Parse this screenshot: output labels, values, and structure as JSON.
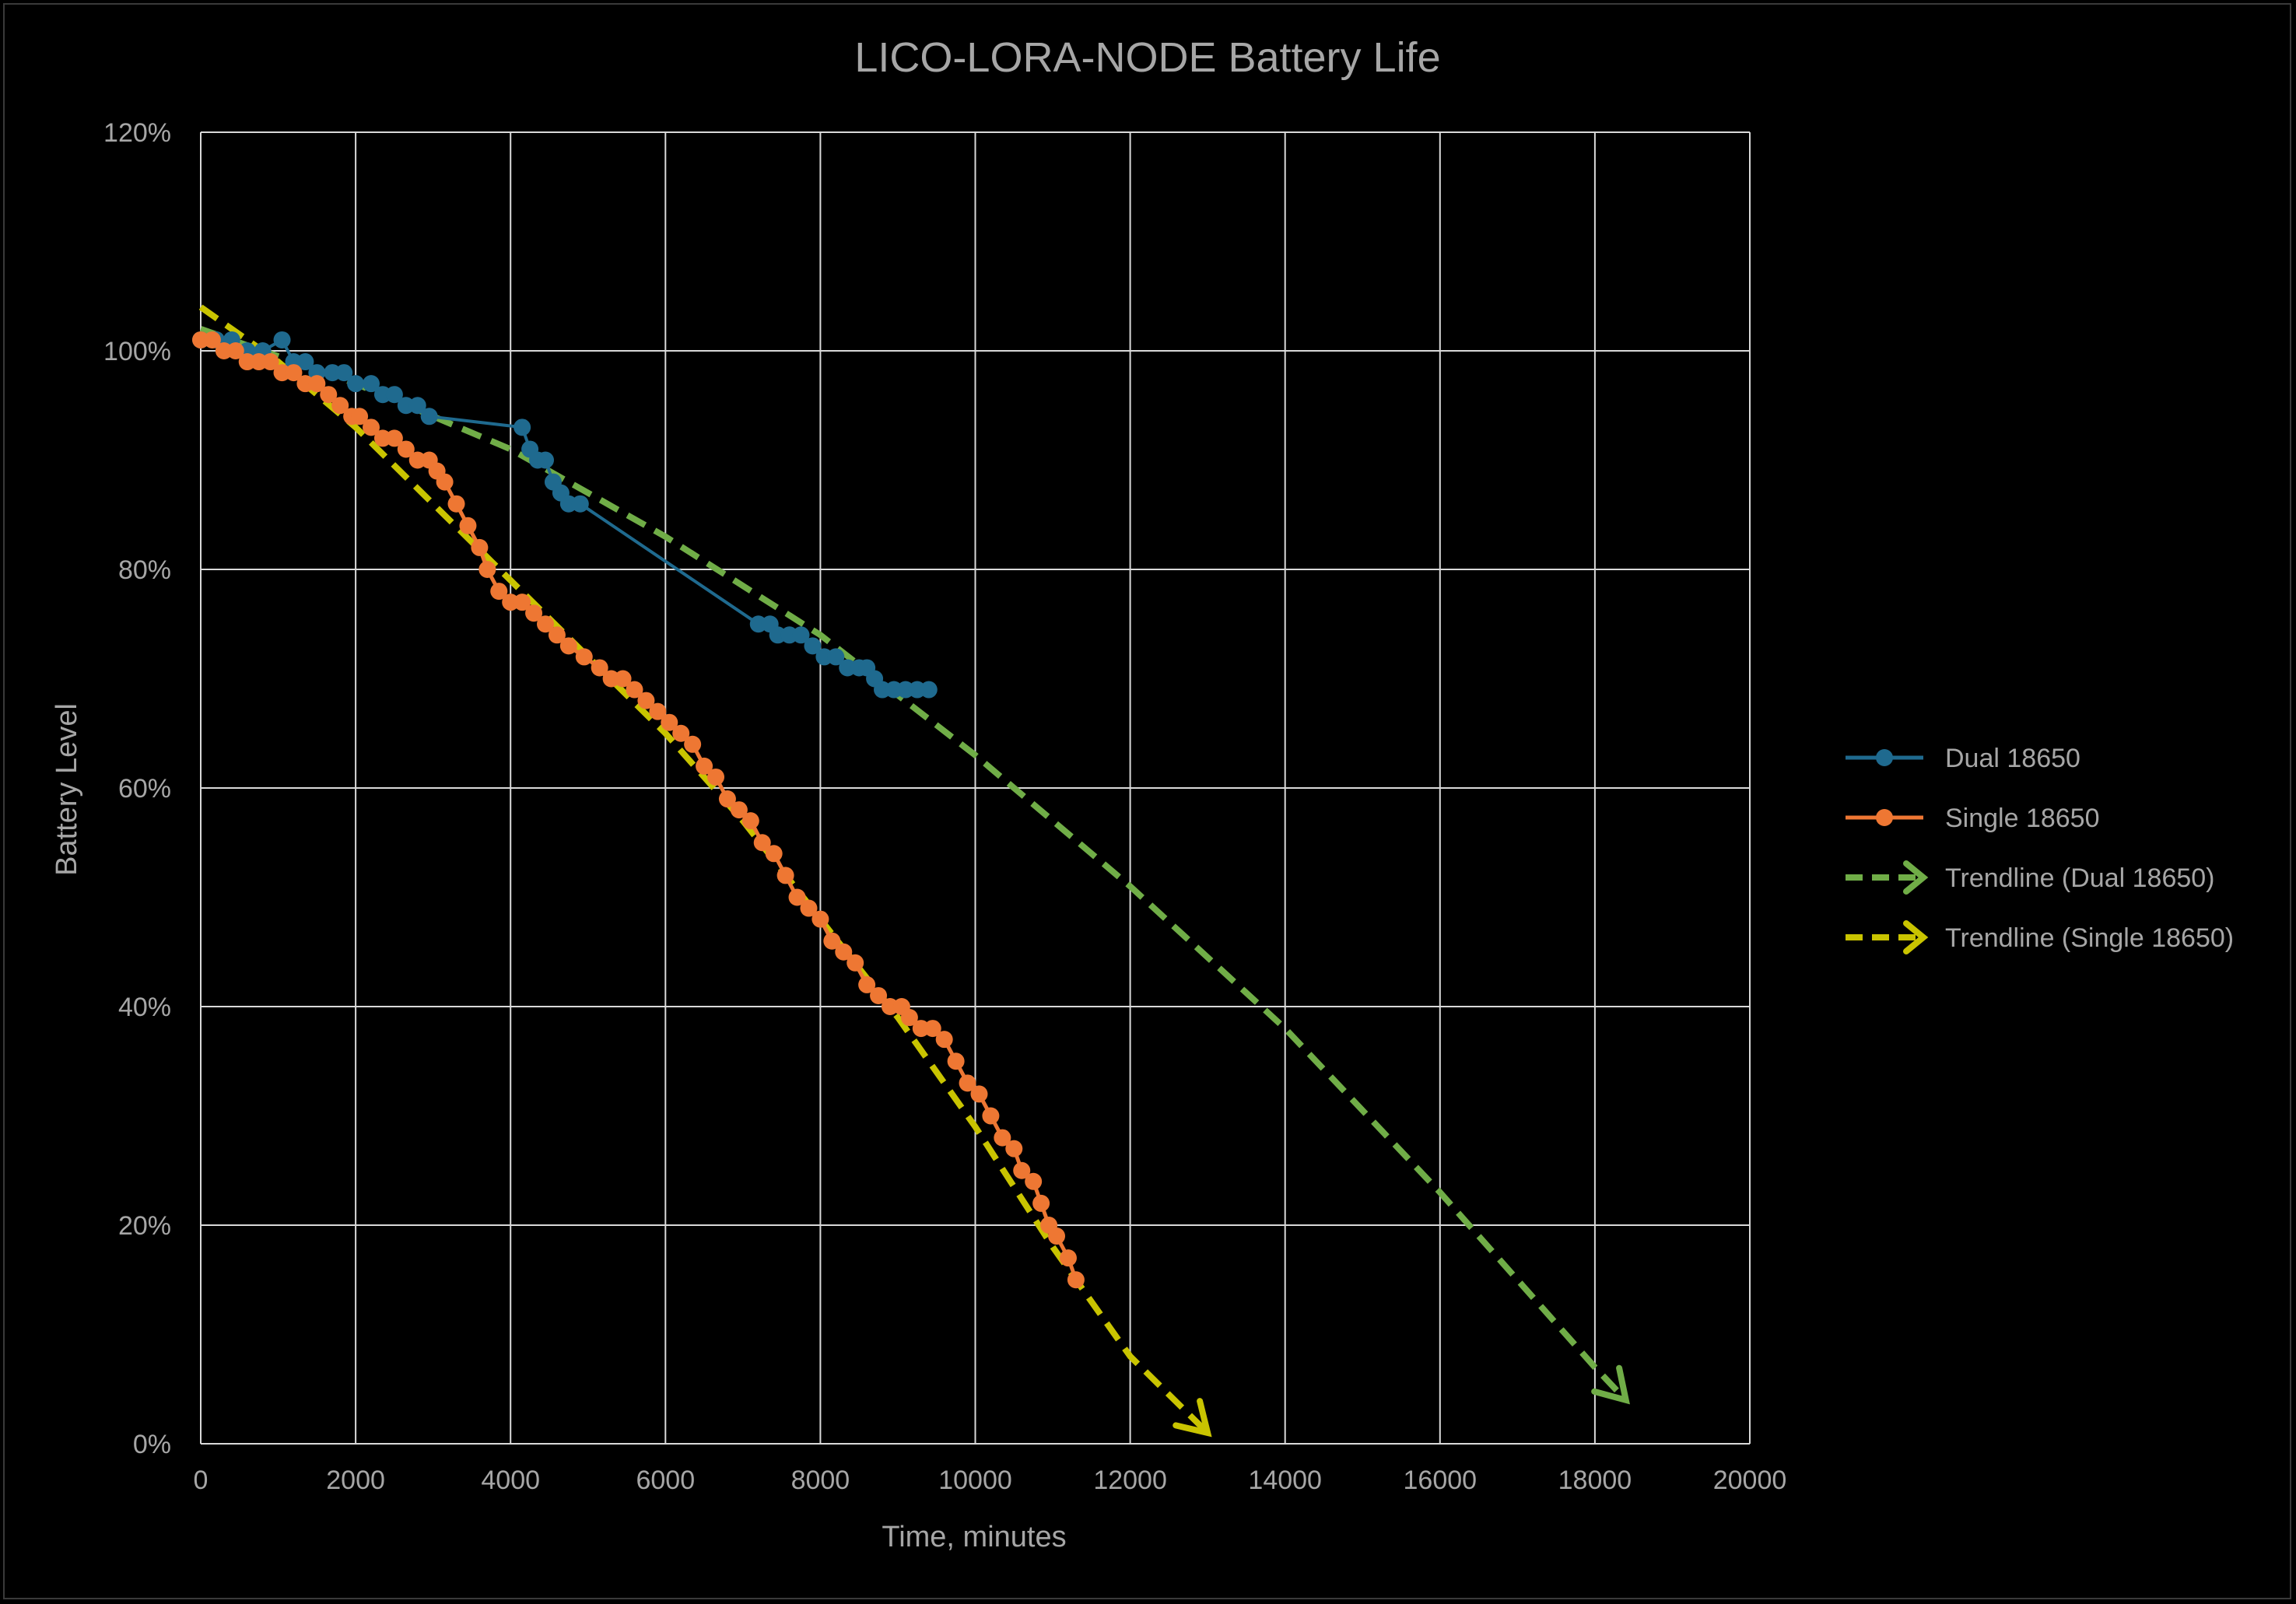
{
  "chart_data": {
    "type": "line",
    "title": "LICO-LORA-NODE  Battery Life",
    "xlabel": "Time, minutes",
    "ylabel": "Battery Level",
    "xlim": [
      0,
      20000
    ],
    "ylim": [
      0,
      1.2
    ],
    "x_ticks": [
      "0",
      "2000",
      "4000",
      "6000",
      "8000",
      "10000",
      "12000",
      "14000",
      "16000",
      "18000",
      "20000"
    ],
    "y_ticks": [
      "0%",
      "20%",
      "40%",
      "60%",
      "80%",
      "100%",
      "120%"
    ],
    "grid": true,
    "legend_position": "right",
    "series": [
      {
        "name": "Dual 18650",
        "color": "#1f6a8f",
        "style": "line-markers",
        "x": [
          0,
          200,
          400,
          600,
          800,
          1050,
          1200,
          1350,
          1500,
          1700,
          1850,
          2000,
          2200,
          2350,
          2500,
          2650,
          2800,
          2950,
          4150,
          4250,
          4350,
          4450,
          4550,
          4650,
          4750,
          4900,
          7200,
          7350,
          7450,
          7600,
          7750,
          7900,
          8050,
          8200,
          8350,
          8500,
          8600,
          8700,
          8800,
          8950,
          9100,
          9250,
          9400
        ],
        "y": [
          1.01,
          1.01,
          1.01,
          1.0,
          1.0,
          1.01,
          0.99,
          0.99,
          0.98,
          0.98,
          0.98,
          0.97,
          0.97,
          0.96,
          0.96,
          0.95,
          0.95,
          0.94,
          0.93,
          0.91,
          0.9,
          0.9,
          0.88,
          0.87,
          0.86,
          0.86,
          0.75,
          0.75,
          0.74,
          0.74,
          0.74,
          0.73,
          0.72,
          0.72,
          0.71,
          0.71,
          0.71,
          0.7,
          0.69,
          0.69,
          0.69,
          0.69,
          0.69
        ]
      },
      {
        "name": "Single 18650",
        "color": "#ee7733",
        "style": "line-markers",
        "x": [
          0,
          150,
          300,
          450,
          600,
          750,
          900,
          1050,
          1200,
          1350,
          1500,
          1650,
          1800,
          1950,
          2050,
          2200,
          2350,
          2500,
          2650,
          2800,
          2950,
          3050,
          3150,
          3300,
          3450,
          3600,
          3700,
          3850,
          4000,
          4150,
          4300,
          4450,
          4600,
          4750,
          4950,
          5150,
          5300,
          5450,
          5600,
          5750,
          5900,
          6050,
          6200,
          6350,
          6500,
          6650,
          6800,
          6950,
          7100,
          7250,
          7400,
          7550,
          7700,
          7850,
          8000,
          8150,
          8300,
          8450,
          8600,
          8750,
          8900,
          9050,
          9150,
          9300,
          9450,
          9600,
          9750,
          9900,
          10050,
          10200,
          10350,
          10500,
          10600,
          10750,
          10850,
          10950,
          11050,
          11200,
          11300
        ],
        "y": [
          1.01,
          1.01,
          1.0,
          1.0,
          0.99,
          0.99,
          0.99,
          0.98,
          0.98,
          0.97,
          0.97,
          0.96,
          0.95,
          0.94,
          0.94,
          0.93,
          0.92,
          0.92,
          0.91,
          0.9,
          0.9,
          0.89,
          0.88,
          0.86,
          0.84,
          0.82,
          0.8,
          0.78,
          0.77,
          0.77,
          0.76,
          0.75,
          0.74,
          0.73,
          0.72,
          0.71,
          0.7,
          0.7,
          0.69,
          0.68,
          0.67,
          0.66,
          0.65,
          0.64,
          0.62,
          0.61,
          0.59,
          0.58,
          0.57,
          0.55,
          0.54,
          0.52,
          0.5,
          0.49,
          0.48,
          0.46,
          0.45,
          0.44,
          0.42,
          0.41,
          0.4,
          0.4,
          0.39,
          0.38,
          0.38,
          0.37,
          0.35,
          0.33,
          0.32,
          0.3,
          0.28,
          0.27,
          0.25,
          0.24,
          0.22,
          0.2,
          0.19,
          0.17,
          0.15
        ]
      },
      {
        "name": "Trendline (Dual 18650)",
        "color": "#70ad47",
        "style": "dashed-arrow",
        "x": [
          0,
          2000,
          4000,
          6000,
          8000,
          10000,
          12000,
          14000,
          16000,
          18000,
          18400
        ],
        "y": [
          1.02,
          0.97,
          0.91,
          0.83,
          0.74,
          0.63,
          0.51,
          0.38,
          0.23,
          0.07,
          0.04
        ]
      },
      {
        "name": "Trendline (Single 18650)",
        "color": "#c9c400",
        "style": "dashed-arrow",
        "x": [
          0,
          1000,
          2000,
          3000,
          4000,
          5000,
          6000,
          7000,
          8000,
          9000,
          10000,
          11000,
          12000,
          13000
        ],
        "y": [
          1.04,
          0.99,
          0.93,
          0.86,
          0.79,
          0.72,
          0.65,
          0.57,
          0.48,
          0.39,
          0.29,
          0.18,
          0.08,
          0.01
        ]
      }
    ]
  }
}
